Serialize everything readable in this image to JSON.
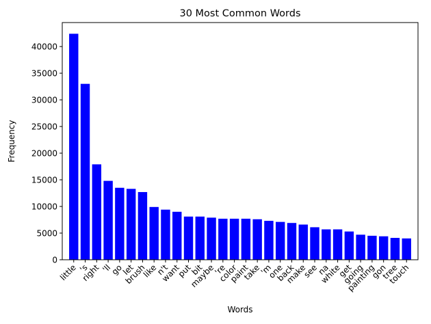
{
  "chart_data": {
    "type": "bar",
    "title": "30 Most Common Words",
    "xlabel": "Words",
    "ylabel": "Frequency",
    "ylim": [
      0,
      44500
    ],
    "yticks": [
      0,
      5000,
      10000,
      15000,
      20000,
      25000,
      30000,
      35000,
      40000
    ],
    "grid": false,
    "legend": "none",
    "bar_color": "#0000ff",
    "categories": [
      "little",
      "'s",
      "right",
      "'ll",
      "go",
      "let",
      "brush",
      "like",
      "n't",
      "want",
      "put",
      "bit",
      "maybe",
      "'re",
      "color",
      "paint",
      "take",
      "'m",
      "one",
      "back",
      "make",
      "see",
      "na",
      "white",
      "get",
      "going",
      "painting",
      "gon",
      "tree",
      "touch"
    ],
    "values": [
      42400,
      33000,
      17900,
      14800,
      13500,
      13300,
      12700,
      9900,
      9400,
      9000,
      8100,
      8100,
      7900,
      7700,
      7700,
      7700,
      7600,
      7300,
      7100,
      6900,
      6600,
      6100,
      5700,
      5700,
      5300,
      4700,
      4500,
      4400,
      4100,
      4000
    ]
  }
}
